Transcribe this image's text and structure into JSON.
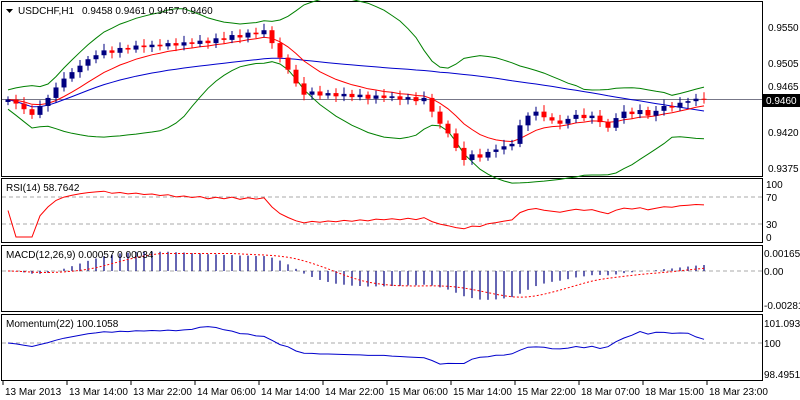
{
  "chart_data": {
    "type": "candlestick",
    "symbol_header": "USDCHF,H1",
    "ohlc_header": "0.9458 0.9461 0.9457 0.9460",
    "current_price": "0.9460",
    "price_axis": {
      "ticks": [
        "0.9550",
        "0.9505",
        "0.9465",
        "0.9420",
        "0.9375"
      ],
      "ylim": [
        0.9366,
        0.9584
      ]
    },
    "time_labels": [
      "13 Mar 2013",
      "13 Mar 14:00",
      "13 Mar 22:00",
      "14 Mar 06:00",
      "14 Mar 14:00",
      "14 Mar 22:00",
      "15 Mar 06:00",
      "15 Mar 14:00",
      "15 Mar 22:00",
      "18 Mar 07:00",
      "18 Mar 15:00",
      "18 Mar 23:00"
    ],
    "closes": [
      0.946,
      0.9455,
      0.9448,
      0.9441,
      0.9452,
      0.9462,
      0.9475,
      0.9486,
      0.9494,
      0.9502,
      0.951,
      0.9515,
      0.9521,
      0.9518,
      0.9524,
      0.9522,
      0.9527,
      0.9525,
      0.9528,
      0.9526,
      0.953,
      0.9527,
      0.9531,
      0.9529,
      0.9533,
      0.953,
      0.9536,
      0.9534,
      0.954,
      0.9537,
      0.9543,
      0.9541,
      0.9546,
      0.953,
      0.9512,
      0.9497,
      0.948,
      0.9466,
      0.947,
      0.9465,
      0.9468,
      0.9464,
      0.9467,
      0.9463,
      0.9466,
      0.9461,
      0.9465,
      0.9462,
      0.9464,
      0.946,
      0.9463,
      0.9458,
      0.9462,
      0.9445,
      0.943,
      0.9418,
      0.94,
      0.9385,
      0.9392,
      0.9388,
      0.9395,
      0.9398,
      0.9402,
      0.9405,
      0.9428,
      0.944,
      0.9445,
      0.9438,
      0.9434,
      0.943,
      0.9436,
      0.9441,
      0.9437,
      0.944,
      0.9432,
      0.9425,
      0.9437,
      0.9445,
      0.9442,
      0.9447,
      0.944,
      0.9446,
      0.9452,
      0.945,
      0.9456,
      0.9458,
      0.9461,
      0.946
    ],
    "rsi": {
      "label": "RSI(14) 58.7642",
      "ticks": [
        "100",
        "70",
        "30",
        "0"
      ]
    },
    "macd": {
      "label": "MACD(12,26,9) 0.00057 0.00034",
      "ticks": [
        "0.00165",
        "0.00",
        "-0.00281"
      ],
      "ylim": [
        -0.00281,
        0.00165
      ]
    },
    "momentum": {
      "label": "Momentum(22) 100.1058",
      "ticks": [
        "101.0934",
        "100",
        "98.4951"
      ],
      "ylim": [
        98.4951,
        101.0934
      ]
    },
    "colors": {
      "bull": "#000080",
      "bear": "#ff0000",
      "band": "#008000",
      "ma_slow": "#0000cc",
      "ma_fast": "#ff0000"
    }
  }
}
